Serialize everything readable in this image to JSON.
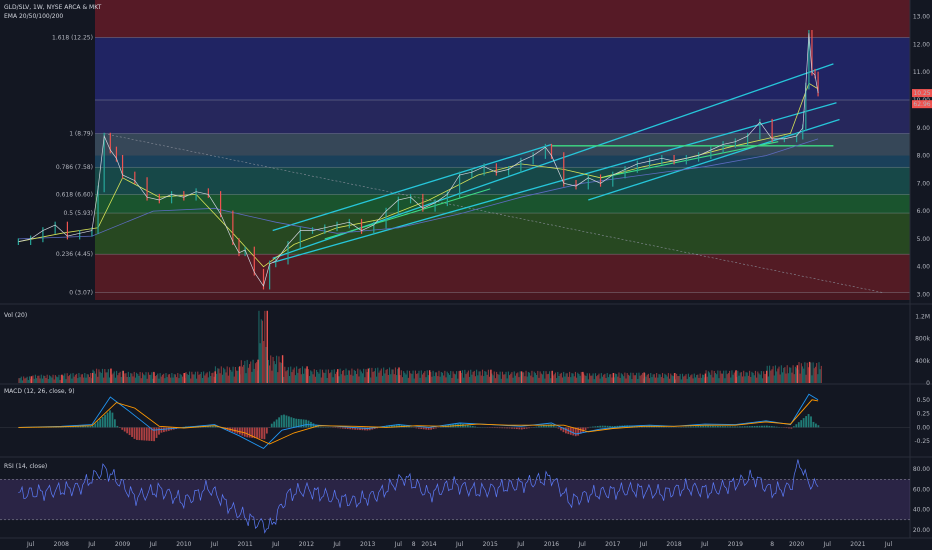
{
  "header": {
    "symbol_line": "GLD/SLV, 1W, NYSE ARCA & MKT",
    "ema_label": "EMA 20/50/100/200"
  },
  "panes": {
    "vol_label": "Vol (20)",
    "macd_label": "MACD (12, 26, close, 9)",
    "rsi_label": "RSI (14, close)"
  },
  "price_badges": [
    "10.25",
    "62.96"
  ],
  "colors": {
    "background": "#131722",
    "channel": "#26c6da",
    "trend": "#3ddc84",
    "up": "#26a69a",
    "down": "#ef5350",
    "macd_line": "#2196f3",
    "signal_line": "#ff9800",
    "rsi_line": "#7e57c2"
  },
  "chart_data": [
    {
      "type": "line",
      "pane": "price",
      "scale": "linear",
      "ylim": [
        2.8,
        13.6
      ],
      "y_ticks": [
        "13.00",
        "12.00",
        "11.00",
        "10.00",
        "9.00",
        "8.00",
        "7.00",
        "6.00",
        "5.00",
        "4.00",
        "3.00"
      ],
      "y_tick_values": [
        13,
        12,
        11,
        10,
        9,
        8,
        7,
        6,
        5,
        4,
        3
      ],
      "x_ticks": [
        "Jul",
        "2008",
        "Jul",
        "2009",
        "Jul",
        "2010",
        "Jul",
        "2011",
        "Jul",
        "2012",
        "Jul",
        "2013",
        "Jul",
        "8",
        "2014",
        "Jul",
        "2015",
        "Jul",
        "2016",
        "Jul",
        "2017",
        "Jul",
        "2018",
        "Jul",
        "2019",
        "8",
        "2020",
        "Jul",
        "2021",
        "Jul"
      ],
      "x_tick_values": [
        2007.5,
        2008,
        2008.5,
        2009,
        2009.5,
        2010,
        2010.5,
        2011,
        2011.5,
        2012,
        2012.5,
        2013,
        2013.5,
        2013.75,
        2014,
        2014.5,
        2015,
        2015.5,
        2016,
        2016.5,
        2017,
        2017.5,
        2018,
        2018.5,
        2019,
        2019.6,
        2020,
        2020.5,
        2021,
        2021.5
      ],
      "fib_levels": [
        {
          "label": "0 (3.07)",
          "value": 3.07
        },
        {
          "label": "0.236 (4.45)",
          "value": 4.45
        },
        {
          "label": "0.5 (5.93)",
          "value": 5.93
        },
        {
          "label": "0.618 (6.60)",
          "value": 6.6
        },
        {
          "label": "0.786 (7.58)",
          "value": 7.58
        },
        {
          "label": "1 (8.79)",
          "value": 8.79
        },
        {
          "label": "1.618 (12.25)",
          "value": 12.25
        }
      ],
      "series": [
        {
          "name": "GLD/SLV",
          "x": [
            2007.3,
            2007.5,
            2007.7,
            2007.9,
            2008.1,
            2008.3,
            2008.5,
            2008.6,
            2008.7,
            2008.8,
            2008.9,
            2009.0,
            2009.2,
            2009.4,
            2009.6,
            2009.8,
            2010.0,
            2010.2,
            2010.4,
            2010.6,
            2010.8,
            2010.9,
            2011.0,
            2011.15,
            2011.3,
            2011.4,
            2011.5,
            2011.7,
            2011.9,
            2012.1,
            2012.3,
            2012.5,
            2012.7,
            2012.9,
            2013.1,
            2013.3,
            2013.5,
            2013.7,
            2013.9,
            2014.1,
            2014.3,
            2014.5,
            2014.7,
            2014.9,
            2015.1,
            2015.3,
            2015.5,
            2015.7,
            2015.9,
            2016.0,
            2016.2,
            2016.4,
            2016.6,
            2016.8,
            2017.0,
            2017.2,
            2017.4,
            2017.6,
            2017.8,
            2018.0,
            2018.2,
            2018.4,
            2018.6,
            2018.8,
            2019.0,
            2019.2,
            2019.4,
            2019.6,
            2019.8,
            2020.0,
            2020.1,
            2020.15,
            2020.2,
            2020.25,
            2020.3,
            2020.35
          ],
          "values": [
            4.9,
            5.0,
            5.3,
            5.5,
            5.1,
            5.2,
            5.3,
            6.8,
            8.7,
            8.2,
            7.9,
            7.3,
            7.1,
            6.5,
            6.4,
            6.6,
            6.5,
            6.7,
            6.6,
            5.9,
            4.9,
            4.5,
            4.6,
            3.8,
            3.3,
            4.1,
            4.2,
            4.8,
            5.3,
            5.3,
            5.4,
            5.5,
            5.6,
            5.3,
            5.5,
            6.0,
            6.4,
            6.5,
            6.1,
            6.3,
            6.6,
            7.3,
            7.4,
            7.6,
            7.4,
            7.5,
            7.8,
            8.0,
            8.3,
            8.0,
            7.0,
            6.9,
            7.2,
            7.0,
            7.3,
            7.5,
            7.7,
            7.8,
            7.9,
            7.8,
            7.9,
            8.0,
            8.2,
            8.4,
            8.5,
            8.7,
            9.2,
            8.6,
            8.6,
            8.7,
            9.0,
            10.5,
            12.4,
            11.0,
            10.9,
            10.25
          ]
        },
        {
          "name": "EMA 20",
          "x": [
            2007.3,
            2008.0,
            2008.6,
            2009.0,
            2009.6,
            2010.2,
            2010.8,
            2011.3,
            2011.8,
            2012.5,
            2013.2,
            2014.0,
            2014.8,
            2015.5,
            2016.2,
            2016.8,
            2017.5,
            2018.2,
            2018.9,
            2019.5,
            2019.9,
            2020.2,
            2020.35
          ],
          "values": [
            4.9,
            5.2,
            5.4,
            7.2,
            6.5,
            6.6,
            5.2,
            4.0,
            4.8,
            5.4,
            5.7,
            6.4,
            7.3,
            7.7,
            7.5,
            7.2,
            7.6,
            7.9,
            8.3,
            8.6,
            8.8,
            10.6,
            10.4
          ]
        },
        {
          "name": "EMA 200",
          "x": [
            2007.3,
            2008.5,
            2009.5,
            2010.5,
            2011.5,
            2012.5,
            2013.5,
            2014.5,
            2015.5,
            2016.5,
            2017.5,
            2018.5,
            2019.5,
            2020.35
          ],
          "values": [
            5.0,
            5.1,
            6.0,
            6.1,
            5.6,
            5.2,
            5.4,
            5.9,
            6.5,
            7.0,
            7.3,
            7.6,
            8.0,
            8.6
          ]
        }
      ]
    },
    {
      "type": "bar",
      "pane": "volume",
      "y_ticks": [
        "1.2M",
        "800k",
        "400k",
        "0"
      ],
      "y_tick_values": [
        1200,
        800,
        400,
        0
      ],
      "ylim": [
        0,
        1350
      ],
      "unit": "k",
      "x": [
        2007.5,
        2008.0,
        2008.5,
        2008.8,
        2009.0,
        2009.5,
        2010.0,
        2010.5,
        2010.9,
        2011.2,
        2011.35,
        2011.6,
        2012.0,
        2012.5,
        2013.0,
        2013.5,
        2014.0,
        2014.5,
        2015.0,
        2015.5,
        2016.0,
        2016.5,
        2017.0,
        2017.5,
        2018.0,
        2018.5,
        2019.0,
        2019.5,
        2020.0,
        2020.2
      ],
      "values": [
        120,
        150,
        180,
        260,
        220,
        200,
        180,
        210,
        300,
        420,
        1300,
        500,
        300,
        250,
        260,
        280,
        230,
        220,
        240,
        210,
        220,
        200,
        180,
        190,
        180,
        170,
        230,
        220,
        320,
        380
      ]
    },
    {
      "type": "line",
      "pane": "macd",
      "y_ticks": [
        "0.50",
        "0.25",
        "0.00",
        "-0.25"
      ],
      "y_tick_values": [
        0.5,
        0.25,
        0,
        -0.25
      ],
      "ylim": [
        -0.5,
        0.75
      ],
      "series": [
        {
          "name": "MACD",
          "x": [
            2007.3,
            2008.0,
            2008.5,
            2008.8,
            2009.1,
            2009.5,
            2010.0,
            2010.5,
            2010.9,
            2011.3,
            2011.6,
            2012.0,
            2012.5,
            2013.0,
            2013.5,
            2014.0,
            2014.5,
            2015.0,
            2015.5,
            2016.0,
            2016.4,
            2016.8,
            2017.2,
            2017.6,
            2018.0,
            2018.5,
            2019.0,
            2019.5,
            2019.9,
            2020.2,
            2020.35
          ],
          "values": [
            0.0,
            0.02,
            0.05,
            0.55,
            0.3,
            -0.05,
            0.0,
            0.05,
            -0.15,
            -0.38,
            -0.05,
            0.05,
            0.02,
            -0.02,
            0.05,
            0.0,
            0.08,
            0.05,
            0.02,
            0.08,
            -0.12,
            -0.03,
            0.02,
            0.04,
            0.02,
            0.06,
            0.05,
            0.12,
            0.05,
            0.6,
            0.5
          ]
        },
        {
          "name": "Signal",
          "x": [
            2007.3,
            2008.0,
            2008.5,
            2008.9,
            2009.2,
            2009.6,
            2010.0,
            2010.5,
            2011.0,
            2011.4,
            2011.8,
            2012.2,
            2012.8,
            2013.3,
            2013.8,
            2014.3,
            2014.8,
            2015.3,
            2015.8,
            2016.2,
            2016.6,
            2017.0,
            2017.5,
            2018.0,
            2018.5,
            2019.0,
            2019.5,
            2019.9,
            2020.25,
            2020.35
          ],
          "values": [
            0.0,
            0.01,
            0.03,
            0.45,
            0.35,
            0.02,
            -0.01,
            0.03,
            -0.1,
            -0.3,
            -0.1,
            0.03,
            0.02,
            0.0,
            0.03,
            0.02,
            0.06,
            0.04,
            0.04,
            0.04,
            -0.08,
            -0.02,
            0.02,
            0.02,
            0.04,
            0.04,
            0.1,
            0.06,
            0.5,
            0.48
          ]
        }
      ]
    },
    {
      "type": "line",
      "pane": "rsi",
      "y_ticks": [
        "80.00",
        "60.00",
        "40.00",
        "20.00"
      ],
      "y_tick_values": [
        80,
        60,
        40,
        20
      ],
      "ylim": [
        15,
        90
      ],
      "bands": [
        70,
        30
      ],
      "series": [
        {
          "name": "RSI",
          "x": [
            2007.3,
            2007.8,
            2008.3,
            2008.7,
            2008.9,
            2009.2,
            2009.6,
            2010.0,
            2010.4,
            2010.8,
            2011.1,
            2011.4,
            2011.7,
            2012.0,
            2012.4,
            2012.8,
            2013.2,
            2013.6,
            2014.0,
            2014.4,
            2014.8,
            2015.2,
            2015.6,
            2016.0,
            2016.3,
            2016.6,
            2017.0,
            2017.4,
            2017.8,
            2018.2,
            2018.6,
            2019.0,
            2019.3,
            2019.6,
            2019.9,
            2020.05,
            2020.15,
            2020.3
          ],
          "values": [
            55,
            58,
            62,
            80,
            70,
            52,
            60,
            48,
            62,
            40,
            30,
            22,
            55,
            60,
            52,
            48,
            56,
            72,
            55,
            65,
            58,
            62,
            66,
            72,
            48,
            55,
            58,
            60,
            56,
            62,
            58,
            66,
            72,
            58,
            62,
            88,
            70,
            63
          ]
        }
      ]
    }
  ]
}
